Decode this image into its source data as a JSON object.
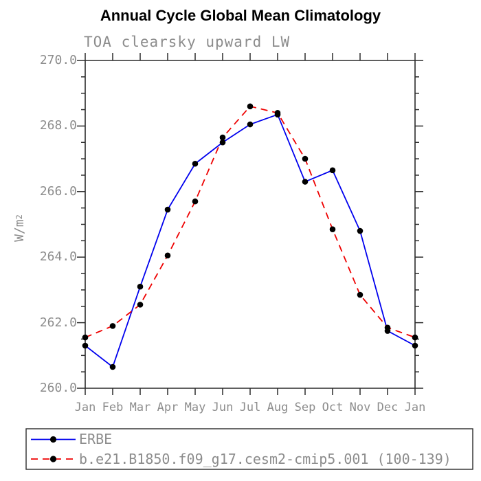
{
  "title": "Annual Cycle Global Mean Climatology",
  "subtitle": "TOA clearsky upward LW",
  "ylabel": {
    "base": "W/m",
    "sup": "2"
  },
  "chart_data": {
    "type": "line",
    "x_categories": [
      "Jan",
      "Feb",
      "Mar",
      "Apr",
      "May",
      "Jun",
      "Jul",
      "Aug",
      "Sep",
      "Oct",
      "Nov",
      "Dec",
      "Jan"
    ],
    "ylim": [
      260.0,
      270.0
    ],
    "y_major_step": 2.0,
    "y_minor_step": 0.5,
    "y_tick_labels": [
      "270.0",
      "268.0",
      "266.0",
      "264.0",
      "262.0",
      "260.0"
    ],
    "grid": false,
    "legend_position": "bottom-left",
    "frame_color": "#2a2a2a",
    "series": [
      {
        "name": "ERBE",
        "color": "#0000ee",
        "style": "solid",
        "marker": "circle",
        "marker_color": "#000000",
        "values": [
          261.3,
          260.65,
          263.1,
          265.45,
          266.85,
          267.5,
          268.05,
          268.35,
          266.3,
          266.65,
          264.8,
          261.75,
          261.3
        ]
      },
      {
        "name": "b.e21.B1850.f09_g17.cesm2-cmip5.001 (100-139)",
        "color": "#ee0000",
        "style": "dashed",
        "marker": "circle",
        "marker_color": "#000000",
        "values": [
          261.55,
          261.9,
          262.55,
          264.05,
          265.7,
          267.65,
          268.6,
          268.4,
          267.0,
          264.85,
          262.85,
          261.85,
          261.55
        ]
      }
    ]
  }
}
